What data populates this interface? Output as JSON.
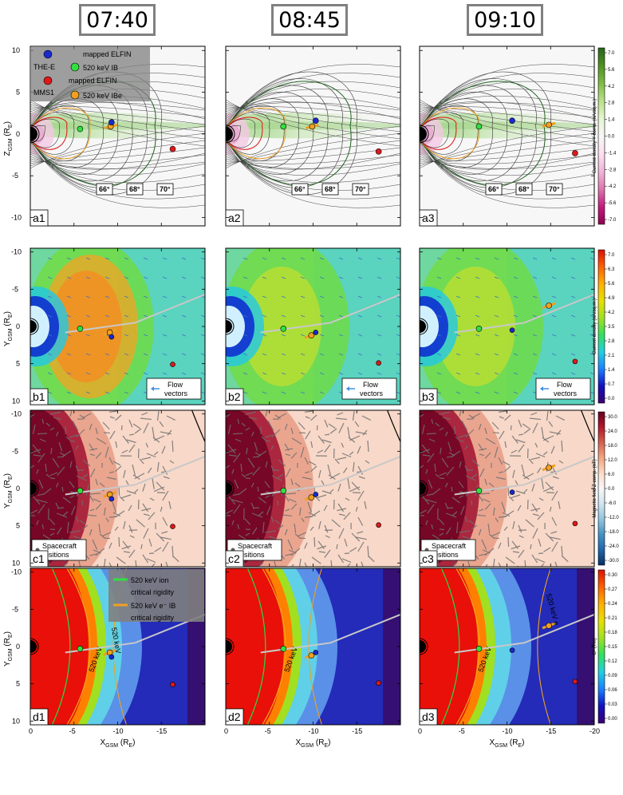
{
  "time_labels": [
    "07:40",
    "08:45",
    "09:10"
  ],
  "row_titles": {
    "a": {
      "y_label": "Z",
      "y_sub": "GSM",
      "y_unit": " (R",
      "y_unit_sub": "E",
      "y_close": ")"
    },
    "bcd": {
      "y_label": "Y",
      "y_sub": "GSM",
      "y_unit": " (R",
      "y_unit_sub": "E",
      "y_close": ")"
    },
    "x": {
      "label": "X",
      "sub": "GSM",
      "unit": " (R",
      "unit_sub": "E",
      "close": ")"
    }
  },
  "panel_labels": [
    [
      "a1",
      "a2",
      "a3"
    ],
    [
      "b1",
      "b2",
      "b3"
    ],
    [
      "c1",
      "c2",
      "c3"
    ],
    [
      "d1",
      "d2",
      "d3"
    ]
  ],
  "colorbars": [
    {
      "label": "Current density Y-comp. (nA/sq.m.)",
      "ticks": [
        "7.0",
        "5.6",
        "4.2",
        "2.8",
        "1.4",
        "0.0",
        "-1.4",
        "-2.8",
        "-4.2",
        "-5.6",
        "-7.0"
      ],
      "colors": [
        "#8e0152",
        "#c51b7d",
        "#de77ae",
        "#f1b6da",
        "#fde0ef",
        "#f7f7f7",
        "#e6f5d0",
        "#b8e186",
        "#7fbc41",
        "#4d9221",
        "#276419"
      ]
    },
    {
      "label": "Current density (nA/sq.m.)",
      "ticks": [
        "7.0",
        "6.3",
        "5.6",
        "4.9",
        "4.2",
        "3.5",
        "2.8",
        "2.1",
        "1.4",
        "0.7",
        "0.0"
      ],
      "colors": [
        "#3a0070",
        "#1010c0",
        "#1a80ff",
        "#20d0e0",
        "#30e060",
        "#a0e020",
        "#e8e000",
        "#ffb000",
        "#ff6000",
        "#e01000"
      ]
    },
    {
      "label": "Magnetic field Z-comp. (nT)",
      "ticks": [
        "30.0",
        "24.0",
        "18.0",
        "12.0",
        "6.0",
        "0.0",
        "-6.0",
        "-12.0",
        "-18.0",
        "-24.0",
        "-30.0"
      ],
      "colors": [
        "#053061",
        "#2166ac",
        "#4393c3",
        "#92c5de",
        "#d1e5f0",
        "#f7f7f7",
        "#fddbc7",
        "#f4a582",
        "#d6604d",
        "#b2182b",
        "#67001f"
      ]
    },
    {
      "label": "G* (Tm)",
      "ticks": [
        "0.30",
        "0.27",
        "0.24",
        "0.21",
        "0.18",
        "0.15",
        "0.12",
        "0.09",
        "0.06",
        "0.03",
        "0.00"
      ],
      "colors": [
        "#3a0070",
        "#1010c0",
        "#1a80ff",
        "#20d0e0",
        "#30e060",
        "#a0e020",
        "#e8e000",
        "#ffb000",
        "#ff6000",
        "#e01000"
      ]
    }
  ],
  "legend_a": {
    "items": [
      {
        "text": "THE-E",
        "color": "#1010c0",
        "marker": "#1a2ad0"
      },
      {
        "text": "MMS1",
        "color": "#e01010",
        "marker": "#e01818"
      }
    ],
    "mapped_green": "mapped ELFIN",
    "ion_green": "520 keV IB",
    "mapped_orange": "mapped ELFIN",
    "e_orange": "520 keV IBe"
  },
  "latitude_labels": [
    {
      "text": "66°",
      "color": "#e01010"
    },
    {
      "text": "68°",
      "color": "#f0a020"
    },
    {
      "text": "70°",
      "color": "#206020"
    }
  ],
  "legend_b": "Flow\nvectors",
  "legend_c": "Spacecraft\npositions",
  "legend_d": {
    "ion": "520 keV ion\ncritical rigidity",
    "electron": "520 keV e⁻ IB\ncritical rigidity"
  },
  "contour_labels": {
    "d_left": "520 keV",
    "d1_mid": "520 keV",
    "d3_right": "520 keV e"
  },
  "chart_data": {
    "type": "heatmap",
    "x_axis": {
      "label": "X_GSM (R_E)",
      "ticks": [
        "0",
        "-5",
        "-10",
        "-15",
        "-20"
      ],
      "range": [
        0,
        -20
      ]
    },
    "z_axis_row_a": {
      "label": "Z_GSM (R_E)",
      "ticks": [
        "10",
        "5",
        "0",
        "-5",
        "-10"
      ],
      "range": [
        10,
        -10
      ]
    },
    "y_axis_rows_bcd": {
      "label": "Y_GSM (R_E)",
      "ticks": [
        "-10",
        "-5",
        "0",
        "5",
        "10"
      ],
      "range": [
        -10,
        10
      ]
    },
    "spacecraft_positions_xy": {
      "07:40": {
        "THE-E": [
          -9.3,
          1.4
        ],
        "MMS1": [
          -16.3,
          5.1
        ],
        "ELFIN_ion": [
          -5.7,
          0.3
        ],
        "ELFIN_e": [
          -9.1,
          0.8
        ]
      },
      "08:45": {
        "THE-E": [
          -10.3,
          0.8
        ],
        "MMS1": [
          -17.5,
          4.9
        ],
        "ELFIN_ion": [
          -6.6,
          0.3
        ],
        "ELFIN_e": [
          -9.8,
          1.2
        ]
      },
      "09:10": {
        "THE-E": [
          -10.6,
          0.5
        ],
        "MMS1": [
          -17.8,
          4.7
        ],
        "ELFIN_ion": [
          -6.8,
          0.3
        ],
        "ELFIN_e": [
          -14.8,
          -2.8
        ]
      }
    },
    "spacecraft_positions_xz": {
      "07:40": {
        "THE-E": [
          -9.3,
          1.4
        ],
        "MMS1": [
          -16.3,
          -1.8
        ],
        "ELFIN_ion": [
          -5.7,
          0.6
        ],
        "ELFIN_e": [
          -9.2,
          0.9
        ]
      },
      "08:45": {
        "THE-E": [
          -10.3,
          1.6
        ],
        "MMS1": [
          -17.5,
          -2.1
        ],
        "ELFIN_ion": [
          -6.6,
          0.9
        ],
        "ELFIN_e": [
          -9.9,
          0.9
        ]
      },
      "09:10": {
        "THE-E": [
          -10.6,
          1.6
        ],
        "MMS1": [
          -17.8,
          -2.3
        ],
        "ELFIN_ion": [
          -6.8,
          0.9
        ],
        "ELFIN_e": [
          -14.8,
          1.1
        ]
      }
    }
  }
}
